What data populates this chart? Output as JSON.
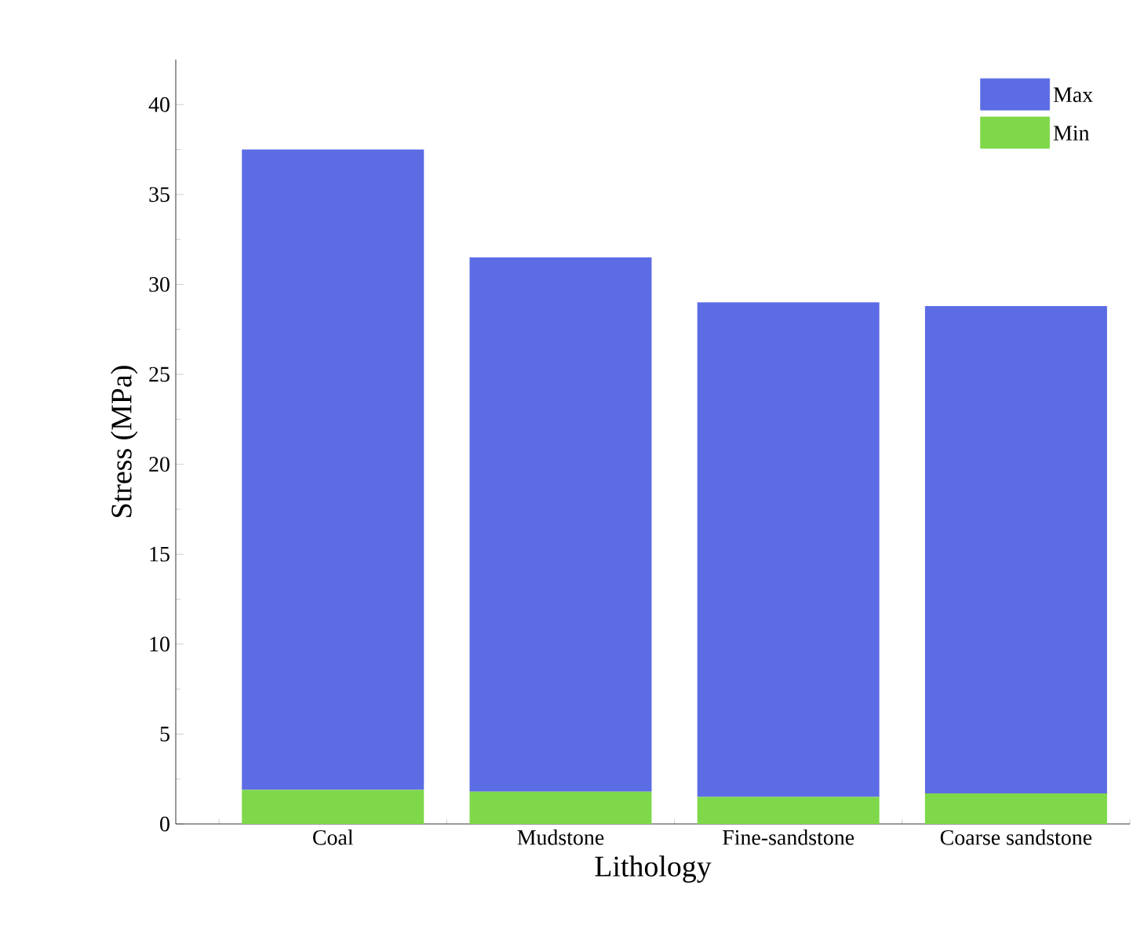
{
  "chart_data": {
    "type": "bar",
    "stacked": true,
    "xlabel": "Lithology",
    "ylabel": "Stress (MPa)",
    "categories": [
      "Coal",
      "Mudstone",
      "Fine-sandstone",
      "Coarse sandstone"
    ],
    "series": [
      {
        "name": "Min",
        "color": "#7ed84a",
        "values": [
          1.9,
          1.8,
          1.5,
          1.7
        ]
      },
      {
        "name": "Max",
        "color": "#5c6ce4",
        "values": [
          35.6,
          29.7,
          27.5,
          27.1
        ]
      }
    ],
    "ylim": [
      0,
      42.5
    ],
    "yticks": [
      0,
      5,
      10,
      15,
      20,
      25,
      30,
      35,
      40
    ],
    "legend": "top right",
    "grid": false
  }
}
